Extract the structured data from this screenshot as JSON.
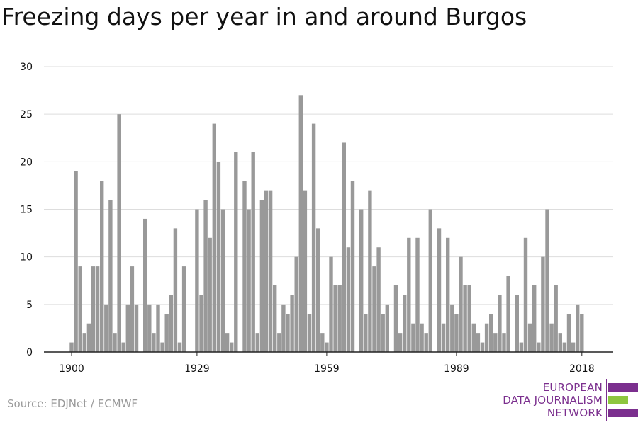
{
  "title": "Freezing days per year in and around Burgos",
  "source": "Source: EDJNet / ECMWF",
  "logo": {
    "line1": "EUROPEAN",
    "line2": "DATA JOURNALISM",
    "line3": "NETWORK",
    "colors": {
      "purple": "#7b2f8e",
      "green": "#8dc63f"
    }
  },
  "colors": {
    "bar": "#999999",
    "grid": "#dddddd",
    "axis": "#222222",
    "text": "#111111"
  },
  "chart_data": {
    "type": "bar",
    "title": "Freezing days per year in and around Burgos",
    "xlabel": "",
    "ylabel": "",
    "ylim": [
      0,
      30
    ],
    "yticks": [
      0,
      5,
      10,
      15,
      20,
      25,
      30
    ],
    "xticks": [
      1900,
      1929,
      1959,
      1989,
      2018
    ],
    "grid": true,
    "categories": [
      1900,
      1901,
      1902,
      1903,
      1904,
      1905,
      1906,
      1907,
      1908,
      1909,
      1910,
      1911,
      1912,
      1913,
      1914,
      1915,
      1916,
      1917,
      1918,
      1919,
      1920,
      1921,
      1922,
      1923,
      1924,
      1925,
      1926,
      1927,
      1928,
      1929,
      1930,
      1931,
      1932,
      1933,
      1934,
      1935,
      1936,
      1937,
      1938,
      1939,
      1940,
      1941,
      1942,
      1943,
      1944,
      1945,
      1946,
      1947,
      1948,
      1949,
      1950,
      1951,
      1952,
      1953,
      1954,
      1955,
      1956,
      1957,
      1958,
      1959,
      1960,
      1961,
      1962,
      1963,
      1964,
      1965,
      1966,
      1967,
      1968,
      1969,
      1970,
      1971,
      1972,
      1973,
      1974,
      1975,
      1976,
      1977,
      1978,
      1979,
      1980,
      1981,
      1982,
      1983,
      1984,
      1985,
      1986,
      1987,
      1988,
      1989,
      1990,
      1991,
      1992,
      1993,
      1994,
      1995,
      1996,
      1997,
      1998,
      1999,
      2000,
      2001,
      2002,
      2003,
      2004,
      2005,
      2006,
      2007,
      2008,
      2009,
      2010,
      2011,
      2012,
      2013,
      2014,
      2015,
      2016,
      2017,
      2018
    ],
    "values": [
      1,
      19,
      9,
      2,
      3,
      9,
      9,
      18,
      5,
      16,
      2,
      25,
      1,
      5,
      9,
      5,
      0,
      14,
      5,
      2,
      5,
      1,
      4,
      6,
      13,
      1,
      9,
      0,
      0,
      15,
      6,
      16,
      12,
      24,
      20,
      15,
      2,
      1,
      21,
      0,
      18,
      15,
      21,
      2,
      16,
      17,
      17,
      7,
      2,
      5,
      4,
      6,
      10,
      27,
      17,
      4,
      24,
      13,
      2,
      1,
      10,
      7,
      7,
      22,
      11,
      18,
      0,
      15,
      4,
      17,
      9,
      11,
      4,
      5,
      0,
      7,
      2,
      6,
      12,
      3,
      12,
      3,
      2,
      15,
      0,
      13,
      3,
      12,
      5,
      4,
      10,
      7,
      7,
      3,
      2,
      1,
      3,
      4,
      2,
      6,
      2,
      8,
      0,
      6,
      1,
      12,
      3,
      7,
      1,
      10,
      15,
      3,
      7,
      2,
      1,
      4,
      1,
      5,
      4
    ]
  }
}
